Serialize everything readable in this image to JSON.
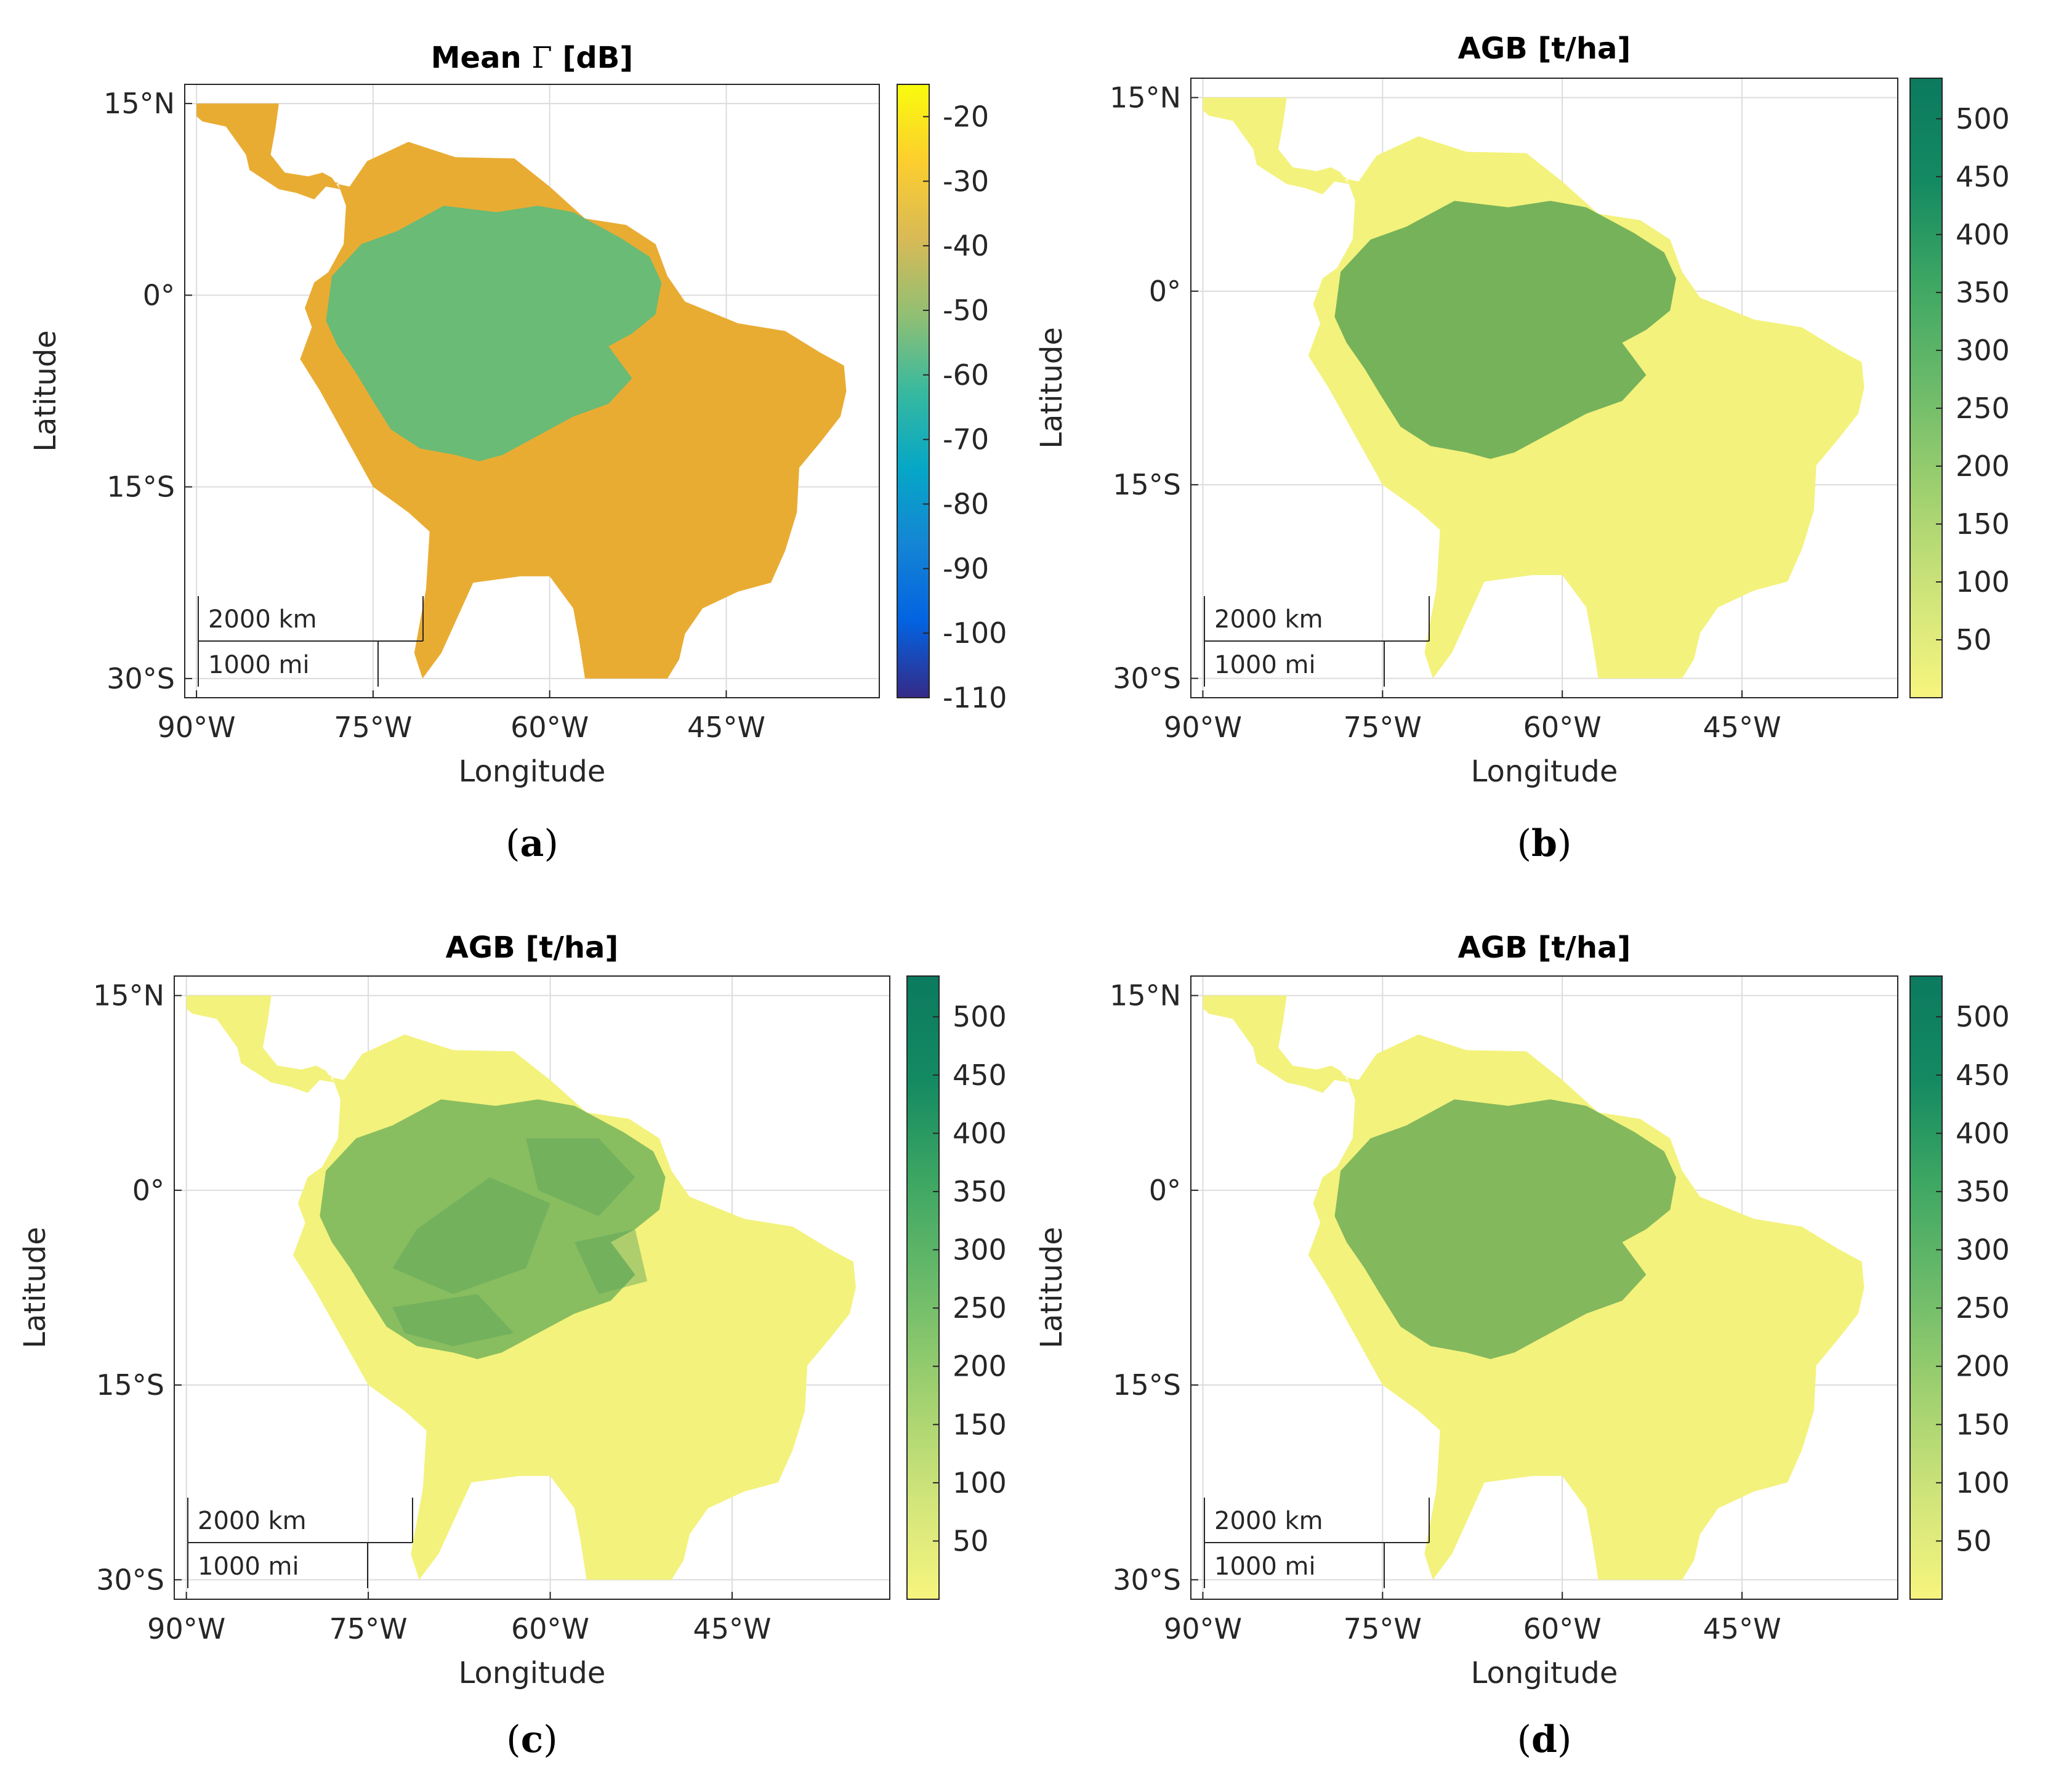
{
  "colors": {
    "parula": [
      "#352a87",
      "#0363e1",
      "#1485d4",
      "#06a7c6",
      "#38b99e",
      "#92bf73",
      "#d9ba56",
      "#fcce2e",
      "#f9fb0e"
    ],
    "agb": [
      "#f7f57e",
      "#cfe47a",
      "#9fd06f",
      "#6cbb6a",
      "#3ea763",
      "#148a62",
      "#0b7a5e"
    ],
    "sa_fill_a": "#e9ac33",
    "amazon_fill_a": "#5cbd7c",
    "amazon_fill_b": "#6fae58",
    "sa_fill_agb": "#f3f27c"
  },
  "chart_data": [
    {
      "panel": "a",
      "type": "heatmap",
      "title_prefix": "Mean",
      "title_symbol": "Γ",
      "title_suffix": "[dB]",
      "xlabel": "Longitude",
      "ylabel": "Latitude",
      "xlim": [
        -91,
        -32
      ],
      "ylim": [
        -31.5,
        16.5
      ],
      "x_ticks": [
        -90,
        -75,
        -60,
        -45
      ],
      "x_tick_labels": [
        "90°W",
        "75°W",
        "60°W",
        "45°W"
      ],
      "y_ticks": [
        15,
        0,
        -15,
        -30
      ],
      "y_tick_labels": [
        "15°N",
        "0°",
        "15°S",
        "30°S"
      ],
      "colorbar_range": [
        -110,
        -15
      ],
      "colorbar_ticks": [
        -20,
        -30,
        -40,
        -50,
        -60,
        -70,
        -80,
        -90,
        -100,
        -110
      ],
      "colorbar_tick_labels": [
        "-20",
        "-30",
        "-40",
        "-50",
        "-60",
        "-70",
        "-80",
        "-90",
        "-100",
        "-110"
      ],
      "colormap": "parula",
      "scalebar": [
        "2000 km",
        "1000 mi"
      ],
      "caption": "a"
    },
    {
      "panel": "b",
      "type": "heatmap",
      "title": "AGB [t/ha]",
      "xlabel": "Longitude",
      "ylabel": "Latitude",
      "xlim": [
        -91,
        -32
      ],
      "ylim": [
        -31.5,
        16.5
      ],
      "x_ticks": [
        -90,
        -75,
        -60,
        -45
      ],
      "x_tick_labels": [
        "90°W",
        "75°W",
        "60°W",
        "45°W"
      ],
      "y_ticks": [
        15,
        0,
        -15,
        -30
      ],
      "y_tick_labels": [
        "15°N",
        "0°",
        "15°S",
        "30°S"
      ],
      "colorbar_range": [
        0,
        535
      ],
      "colorbar_ticks": [
        500,
        450,
        400,
        350,
        300,
        250,
        200,
        150,
        100,
        50
      ],
      "colorbar_tick_labels": [
        "500",
        "450",
        "400",
        "350",
        "300",
        "250",
        "200",
        "150",
        "100",
        "50"
      ],
      "colormap": "agb",
      "scalebar": [
        "2000 km",
        "1000 mi"
      ],
      "caption": "b"
    },
    {
      "panel": "c",
      "type": "heatmap",
      "title": "AGB [t/ha]",
      "xlabel": "Longitude",
      "ylabel": "Latitude",
      "xlim": [
        -91,
        -32
      ],
      "ylim": [
        -31.5,
        16.5
      ],
      "x_ticks": [
        -90,
        -75,
        -60,
        -45
      ],
      "x_tick_labels": [
        "90°W",
        "75°W",
        "60°W",
        "45°W"
      ],
      "y_ticks": [
        15,
        0,
        -15,
        -30
      ],
      "y_tick_labels": [
        "15°N",
        "0°",
        "15°S",
        "30°S"
      ],
      "colorbar_range": [
        0,
        535
      ],
      "colorbar_ticks": [
        500,
        450,
        400,
        350,
        300,
        250,
        200,
        150,
        100,
        50
      ],
      "colorbar_tick_labels": [
        "500",
        "450",
        "400",
        "350",
        "300",
        "250",
        "200",
        "150",
        "100",
        "50"
      ],
      "colormap": "agb",
      "scalebar": [
        "2000 km",
        "1000 mi"
      ],
      "caption": "c"
    },
    {
      "panel": "d",
      "type": "heatmap",
      "title": "AGB [t/ha]",
      "xlabel": "Longitude",
      "ylabel": "Latitude",
      "xlim": [
        -91,
        -32
      ],
      "ylim": [
        -31.5,
        16.5
      ],
      "x_ticks": [
        -90,
        -75,
        -60,
        -45
      ],
      "x_tick_labels": [
        "90°W",
        "75°W",
        "60°W",
        "45°W"
      ],
      "y_ticks": [
        15,
        0,
        -15,
        -30
      ],
      "y_tick_labels": [
        "15°N",
        "0°",
        "15°S",
        "30°S"
      ],
      "colorbar_range": [
        0,
        535
      ],
      "colorbar_ticks": [
        500,
        450,
        400,
        350,
        300,
        250,
        200,
        150,
        100,
        50
      ],
      "colorbar_tick_labels": [
        "500",
        "450",
        "400",
        "350",
        "300",
        "250",
        "200",
        "150",
        "100",
        "50"
      ],
      "colormap": "agb",
      "scalebar": [
        "2000 km",
        "1000 mi"
      ],
      "caption": "d"
    }
  ]
}
